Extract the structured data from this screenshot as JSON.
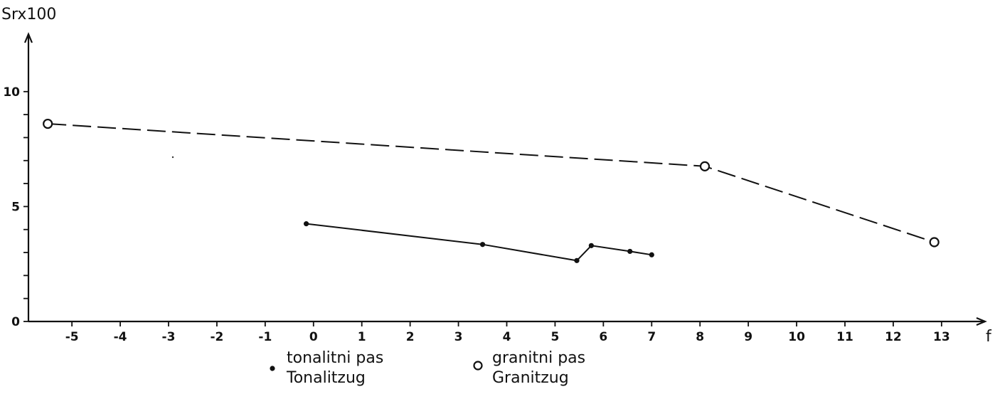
{
  "chart_data": {
    "type": "line",
    "ylabel": "Srx100",
    "xlabel": "f",
    "xlim": [
      -5.9,
      13.9
    ],
    "ylim": [
      0,
      12.5
    ],
    "x_ticks": [
      -5,
      -4,
      -3,
      -2,
      -1,
      0,
      1,
      2,
      3,
      4,
      5,
      6,
      7,
      8,
      9,
      10,
      11,
      12,
      13
    ],
    "x_tick_labels": [
      "-5",
      "-4",
      "-3",
      "-2",
      "-1",
      "0",
      "1",
      "2",
      "3",
      "4",
      "5",
      "6",
      "7",
      "8",
      "9",
      "10",
      "11",
      "12",
      "13"
    ],
    "y_ticks": [
      0,
      1,
      2,
      3,
      4,
      5,
      6,
      7,
      8,
      9,
      10
    ],
    "y_tick_labels": [
      {
        "value": 0,
        "label": "0"
      },
      {
        "value": 5,
        "label": "5"
      },
      {
        "value": 10,
        "label": "10"
      }
    ],
    "grid": false,
    "legend_position": "bottom",
    "series": [
      {
        "name": "tonalitni pas / Tonalitzug",
        "legend_lines": [
          "tonalitni  pas",
          "Tonalitzug"
        ],
        "marker": "filled-dot",
        "line": "solid",
        "color": "#111111",
        "points": [
          {
            "x": -0.15,
            "y": 4.25
          },
          {
            "x": 3.5,
            "y": 3.35
          },
          {
            "x": 5.45,
            "y": 2.65
          },
          {
            "x": 5.75,
            "y": 3.3
          },
          {
            "x": 6.55,
            "y": 3.05
          },
          {
            "x": 7.0,
            "y": 2.9
          }
        ]
      },
      {
        "name": "granitni pas / Granitzug",
        "legend_lines": [
          "granitni  pas",
          "Granitzug"
        ],
        "marker": "open-circle",
        "line": "dashed",
        "color": "#111111",
        "points": [
          {
            "x": -5.5,
            "y": 8.6
          },
          {
            "x": 8.1,
            "y": 6.75
          },
          {
            "x": 12.85,
            "y": 3.45
          }
        ]
      }
    ]
  }
}
